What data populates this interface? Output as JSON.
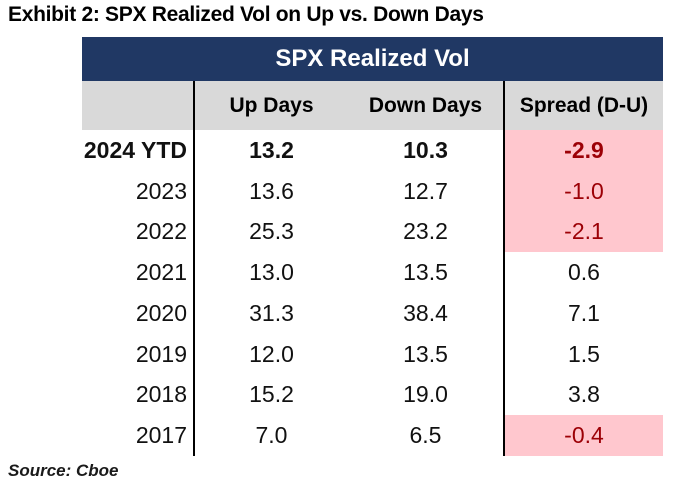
{
  "title": "Exhibit 2: SPX Realized Vol on Up vs. Down Days",
  "source": "Source: Cboe",
  "table": {
    "header": "SPX Realized Vol",
    "columns": [
      "",
      "Up Days",
      "Down Days",
      "Spread (D-U)"
    ],
    "rows": [
      {
        "year": "2024 YTD",
        "up": "13.2",
        "down": "10.3",
        "spread": "-2.9",
        "bold": true,
        "highlight": true
      },
      {
        "year": "2023",
        "up": "13.6",
        "down": "12.7",
        "spread": "-1.0",
        "bold": false,
        "highlight": true
      },
      {
        "year": "2022",
        "up": "25.3",
        "down": "23.2",
        "spread": "-2.1",
        "bold": false,
        "highlight": true
      },
      {
        "year": "2021",
        "up": "13.0",
        "down": "13.5",
        "spread": "0.6",
        "bold": false,
        "highlight": false
      },
      {
        "year": "2020",
        "up": "31.3",
        "down": "38.4",
        "spread": "7.1",
        "bold": false,
        "highlight": false
      },
      {
        "year": "2019",
        "up": "12.0",
        "down": "13.5",
        "spread": "1.5",
        "bold": false,
        "highlight": false
      },
      {
        "year": "2018",
        "up": "15.2",
        "down": "19.0",
        "spread": "3.8",
        "bold": false,
        "highlight": false
      },
      {
        "year": "2017",
        "up": "7.0",
        "down": "6.5",
        "spread": "-0.4",
        "bold": false,
        "highlight": true
      }
    ]
  },
  "colors": {
    "header_bg": "#203864",
    "subheader_bg": "#D9D9D9",
    "highlight_bg": "#FFC7CE",
    "highlight_text": "#9C0006",
    "border": "#000000"
  },
  "chart_data": {
    "type": "table",
    "title": "SPX Realized Vol",
    "exhibit_title": "Exhibit 2: SPX Realized Vol on Up vs. Down Days",
    "source": "Source: Cboe",
    "categories": [
      "2024 YTD",
      "2023",
      "2022",
      "2021",
      "2020",
      "2019",
      "2018",
      "2017"
    ],
    "series": [
      {
        "name": "Up Days",
        "values": [
          13.2,
          13.6,
          25.3,
          13.0,
          31.3,
          12.0,
          15.2,
          7.0
        ]
      },
      {
        "name": "Down Days",
        "values": [
          10.3,
          12.7,
          23.2,
          13.5,
          38.4,
          13.5,
          19.0,
          6.5
        ]
      },
      {
        "name": "Spread (D-U)",
        "values": [
          -2.9,
          -1.0,
          -2.1,
          0.6,
          7.1,
          1.5,
          3.8,
          -0.4
        ]
      }
    ],
    "highlighted_rows": [
      "2024 YTD",
      "2023",
      "2022",
      "2017"
    ],
    "highlight_rule": "negative spread cells shaded pink with dark red text"
  }
}
